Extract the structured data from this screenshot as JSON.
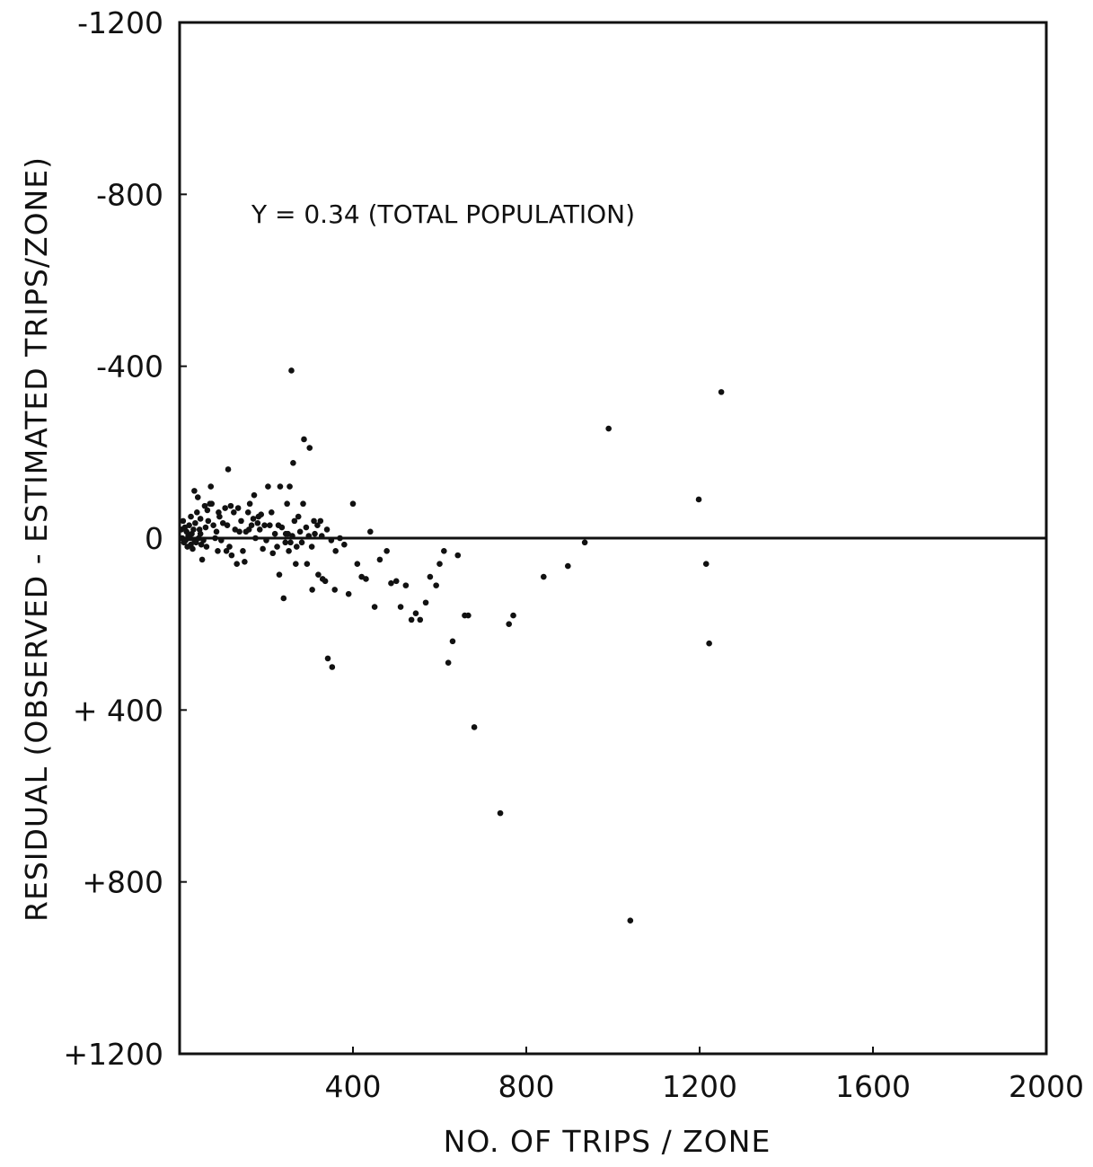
{
  "chart_data": {
    "type": "scatter",
    "xlabel": "NO. OF TRIPS / ZONE",
    "ylabel": "RESIDUAL (OBSERVED - ESTIMATED TRIPS/ZONE)",
    "annotation": "Y = 0.34 (TOTAL POPULATION)",
    "xlim": [
      0,
      2000
    ],
    "ylim": [
      -1200,
      1200
    ],
    "y_inverted": true,
    "x_ticks": [
      {
        "value": 400,
        "label": "400"
      },
      {
        "value": 800,
        "label": "800"
      },
      {
        "value": 1200,
        "label": "1200"
      },
      {
        "value": 1600,
        "label": "1600"
      },
      {
        "value": 2000,
        "label": "2000"
      }
    ],
    "y_ticks": [
      {
        "value": -1200,
        "label": "-1200"
      },
      {
        "value": -800,
        "label": "-800"
      },
      {
        "value": -400,
        "label": "-400"
      },
      {
        "value": 0,
        "label": "0"
      },
      {
        "value": 400,
        "label": "+ 400"
      },
      {
        "value": 800,
        "label": "+800"
      },
      {
        "value": 1200,
        "label": "+1200"
      }
    ],
    "reference_line": 0,
    "grid": false,
    "points": [
      {
        "x": 4,
        "y": -20
      },
      {
        "x": 6,
        "y": 0
      },
      {
        "x": 8,
        "y": -40
      },
      {
        "x": 10,
        "y": 10
      },
      {
        "x": 12,
        "y": -25
      },
      {
        "x": 14,
        "y": 5
      },
      {
        "x": 16,
        "y": -15
      },
      {
        "x": 18,
        "y": 20
      },
      {
        "x": 20,
        "y": -5
      },
      {
        "x": 22,
        "y": -30
      },
      {
        "x": 24,
        "y": 0
      },
      {
        "x": 26,
        "y": 15
      },
      {
        "x": 28,
        "y": -10
      },
      {
        "x": 30,
        "y": 25
      },
      {
        "x": 32,
        "y": -20
      },
      {
        "x": 34,
        "y": 5
      },
      {
        "x": 36,
        "y": -35
      },
      {
        "x": 38,
        "y": 10
      },
      {
        "x": 40,
        "y": -60
      },
      {
        "x": 42,
        "y": -95
      },
      {
        "x": 44,
        "y": 0
      },
      {
        "x": 46,
        "y": -20
      },
      {
        "x": 48,
        "y": -10
      },
      {
        "x": 50,
        "y": 15
      },
      {
        "x": 52,
        "y": 50
      },
      {
        "x": 55,
        "y": 5
      },
      {
        "x": 58,
        "y": -75
      },
      {
        "x": 60,
        "y": -25
      },
      {
        "x": 62,
        "y": 20
      },
      {
        "x": 66,
        "y": -40
      },
      {
        "x": 70,
        "y": -80
      },
      {
        "x": 72,
        "y": -120
      },
      {
        "x": 74,
        "y": -80
      },
      {
        "x": 78,
        "y": -30
      },
      {
        "x": 82,
        "y": 0
      },
      {
        "x": 85,
        "y": -15
      },
      {
        "x": 88,
        "y": 30
      },
      {
        "x": 90,
        "y": -60
      },
      {
        "x": 92,
        "y": -50
      },
      {
        "x": 96,
        "y": 5
      },
      {
        "x": 100,
        "y": -35
      },
      {
        "x": 105,
        "y": -70
      },
      {
        "x": 108,
        "y": 30
      },
      {
        "x": 110,
        "y": -30
      },
      {
        "x": 112,
        "y": -160
      },
      {
        "x": 115,
        "y": 20
      },
      {
        "x": 118,
        "y": -75
      },
      {
        "x": 120,
        "y": 40
      },
      {
        "x": 125,
        "y": -60
      },
      {
        "x": 128,
        "y": -20
      },
      {
        "x": 132,
        "y": 60
      },
      {
        "x": 135,
        "y": -70
      },
      {
        "x": 138,
        "y": -15
      },
      {
        "x": 142,
        "y": -40
      },
      {
        "x": 146,
        "y": 30
      },
      {
        "x": 150,
        "y": 55
      },
      {
        "x": 153,
        "y": -15
      },
      {
        "x": 158,
        "y": -60
      },
      {
        "x": 162,
        "y": -80
      },
      {
        "x": 166,
        "y": -30
      },
      {
        "x": 170,
        "y": -45
      },
      {
        "x": 175,
        "y": 0
      },
      {
        "x": 180,
        "y": -35
      },
      {
        "x": 185,
        "y": -20
      },
      {
        "x": 188,
        "y": -55
      },
      {
        "x": 192,
        "y": 25
      },
      {
        "x": 196,
        "y": -30
      },
      {
        "x": 200,
        "y": 5
      },
      {
        "x": 204,
        "y": -120
      },
      {
        "x": 208,
        "y": -30
      },
      {
        "x": 212,
        "y": -60
      },
      {
        "x": 215,
        "y": 35
      },
      {
        "x": 220,
        "y": -10
      },
      {
        "x": 225,
        "y": 20
      },
      {
        "x": 228,
        "y": -30
      },
      {
        "x": 232,
        "y": -120
      },
      {
        "x": 236,
        "y": -25
      },
      {
        "x": 240,
        "y": 140
      },
      {
        "x": 245,
        "y": -10
      },
      {
        "x": 248,
        "y": -80
      },
      {
        "x": 252,
        "y": 30
      },
      {
        "x": 256,
        "y": 10
      },
      {
        "x": 260,
        "y": -5
      },
      {
        "x": 265,
        "y": -40
      },
      {
        "x": 270,
        "y": 20
      },
      {
        "x": 278,
        "y": -15
      },
      {
        "x": 285,
        "y": -80
      },
      {
        "x": 292,
        "y": -25
      },
      {
        "x": 298,
        "y": -5
      },
      {
        "x": 305,
        "y": 20
      },
      {
        "x": 310,
        "y": -40
      },
      {
        "x": 318,
        "y": -30
      },
      {
        "x": 325,
        "y": -40
      },
      {
        "x": 330,
        "y": 95
      },
      {
        "x": 340,
        "y": -20
      },
      {
        "x": 350,
        "y": 5
      },
      {
        "x": 360,
        "y": 30
      },
      {
        "x": 370,
        "y": 0
      },
      {
        "x": 380,
        "y": 15
      },
      {
        "x": 390,
        "y": 130
      },
      {
        "x": 400,
        "y": -80
      },
      {
        "x": 410,
        "y": 60
      },
      {
        "x": 420,
        "y": 90
      },
      {
        "x": 430,
        "y": 95
      },
      {
        "x": 440,
        "y": -15
      },
      {
        "x": 450,
        "y": 160
      },
      {
        "x": 462,
        "y": 50
      },
      {
        "x": 478,
        "y": 30
      },
      {
        "x": 488,
        "y": 105
      },
      {
        "x": 500,
        "y": 100
      },
      {
        "x": 510,
        "y": 160
      },
      {
        "x": 522,
        "y": 110
      },
      {
        "x": 535,
        "y": 190
      },
      {
        "x": 545,
        "y": 175
      },
      {
        "x": 555,
        "y": 190
      },
      {
        "x": 568,
        "y": 150
      },
      {
        "x": 578,
        "y": 90
      },
      {
        "x": 592,
        "y": 110
      },
      {
        "x": 600,
        "y": 60
      },
      {
        "x": 610,
        "y": 30
      },
      {
        "x": 620,
        "y": 290
      },
      {
        "x": 630,
        "y": 240
      },
      {
        "x": 642,
        "y": 40
      },
      {
        "x": 658,
        "y": 180
      },
      {
        "x": 666,
        "y": 180
      },
      {
        "x": 680,
        "y": 440
      },
      {
        "x": 740,
        "y": 640
      },
      {
        "x": 760,
        "y": 200
      },
      {
        "x": 770,
        "y": 180
      },
      {
        "x": 840,
        "y": 90
      },
      {
        "x": 896,
        "y": 65
      },
      {
        "x": 935,
        "y": 10
      },
      {
        "x": 990,
        "y": -255
      },
      {
        "x": 1040,
        "y": 890
      },
      {
        "x": 1198,
        "y": -90
      },
      {
        "x": 1215,
        "y": 60
      },
      {
        "x": 1222,
        "y": 245
      },
      {
        "x": 1250,
        "y": -340
      },
      {
        "x": 160,
        "y": -20
      },
      {
        "x": 172,
        "y": -100
      },
      {
        "x": 182,
        "y": -50
      },
      {
        "x": 250,
        "y": -10
      },
      {
        "x": 262,
        "y": -175
      },
      {
        "x": 274,
        "y": -50
      },
      {
        "x": 287,
        "y": -230
      },
      {
        "x": 300,
        "y": -210
      },
      {
        "x": 312,
        "y": -10
      },
      {
        "x": 328,
        "y": -5
      },
      {
        "x": 342,
        "y": 280
      },
      {
        "x": 352,
        "y": 300
      },
      {
        "x": 358,
        "y": 120
      },
      {
        "x": 336,
        "y": 100
      },
      {
        "x": 320,
        "y": 85
      },
      {
        "x": 306,
        "y": 120
      },
      {
        "x": 294,
        "y": 60
      },
      {
        "x": 282,
        "y": 10
      },
      {
        "x": 268,
        "y": 60
      },
      {
        "x": 230,
        "y": 85
      },
      {
        "x": 244,
        "y": 10
      },
      {
        "x": 254,
        "y": -120
      },
      {
        "x": 258,
        "y": -390
      },
      {
        "x": 26,
        "y": -50
      },
      {
        "x": 34,
        "y": -110
      },
      {
        "x": 48,
        "y": -45
      },
      {
        "x": 64,
        "y": -65
      }
    ]
  }
}
